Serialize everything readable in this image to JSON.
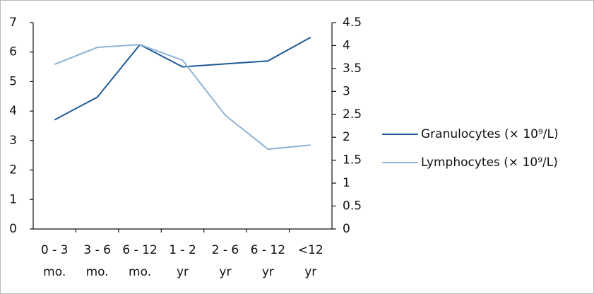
{
  "chart_data": {
    "type": "line",
    "categories": [
      [
        "0 - 3",
        "mo."
      ],
      [
        "3 - 6",
        "mo."
      ],
      [
        "6 - 12",
        "mo."
      ],
      [
        "1 - 2",
        "yr"
      ],
      [
        "2 - 6",
        "yr"
      ],
      [
        "6 - 12",
        "yr"
      ],
      [
        "<12",
        "yr"
      ]
    ],
    "series": [
      {
        "name": "Granulocytes (× 10⁹/L)",
        "color": "#1f5a96",
        "values": [
          3.7,
          4.47,
          6.25,
          5.5,
          5.6,
          5.7,
          6.5
        ]
      },
      {
        "name": "Lymphocytes (× 10⁹/L)",
        "color": "#8fb3d6",
        "axis": "y2",
        "values": [
          3.59,
          3.96,
          4.02,
          3.68,
          2.48,
          1.74,
          1.83
        ]
      }
    ],
    "ylim": [
      0,
      7
    ],
    "yticks": [
      0,
      1,
      2,
      3,
      4,
      5,
      6,
      7
    ],
    "y2lim": [
      0,
      4.5
    ],
    "y2ticks": [
      0,
      0.5,
      1,
      1.5,
      2,
      2.5,
      3,
      3.5,
      4,
      4.5
    ],
    "legend": "right"
  }
}
